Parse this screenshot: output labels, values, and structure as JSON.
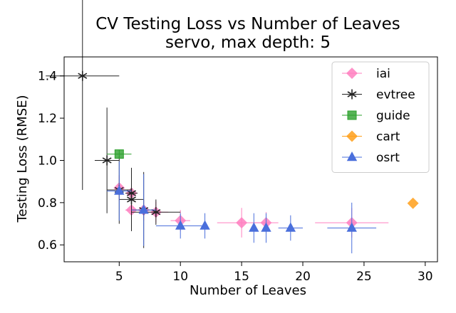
{
  "chart_data": {
    "type": "scatter",
    "title": "CV Testing Loss vs Number of Leaves",
    "subtitle": "servo, max depth: 5",
    "xlabel": "Number of Leaves",
    "ylabel": "Testing Loss (RMSE)",
    "xlim": [
      0.5,
      31
    ],
    "ylim": [
      0.52,
      1.49
    ],
    "xticks": [
      5,
      10,
      15,
      20,
      25,
      30
    ],
    "yticks": [
      0.6,
      0.8,
      1.0,
      1.2,
      1.4
    ],
    "xtick_labels": [
      "5",
      "10",
      "15",
      "20",
      "25",
      "30"
    ],
    "ytick_labels": [
      "0.6",
      "0.8",
      "1.0",
      "1.2",
      "1.4"
    ],
    "legend_position": "top-right",
    "grid": false,
    "series": [
      {
        "name": "iai",
        "marker": "diamond",
        "color": "#ff7fbf",
        "points": [
          {
            "x": 5,
            "y": 0.87,
            "xerr": 0.3,
            "yerr": 0.06
          },
          {
            "x": 6,
            "y": 0.845,
            "xerr": 0.5,
            "yerr": 0.06
          },
          {
            "x": 6,
            "y": 0.765,
            "xerr": 0.5,
            "yerr": 0.05
          },
          {
            "x": 7,
            "y": 0.765,
            "xerr": 0.5,
            "yerr": 0.05
          },
          {
            "x": 8,
            "y": 0.755,
            "xerr": 1.0,
            "yerr": 0.05
          },
          {
            "x": 10,
            "y": 0.715,
            "xerr": 0.8,
            "yerr": 0.05
          },
          {
            "x": 15,
            "y": 0.705,
            "xerr": 2.0,
            "yerr": 0.07
          },
          {
            "x": 17,
            "y": 0.705,
            "xerr": 1.0,
            "yerr": 0.05
          },
          {
            "x": 24,
            "y": 0.705,
            "xerr": 3.0,
            "yerr": 0.07
          }
        ]
      },
      {
        "name": "evtree",
        "marker": "star",
        "color": "#222222",
        "points": [
          {
            "x": 2,
            "y": 1.4,
            "xerr": 3.0,
            "yerr": 0.54
          },
          {
            "x": 4,
            "y": 1.0,
            "xerr": 1.0,
            "yerr": 0.25
          },
          {
            "x": 5,
            "y": 0.86,
            "xerr": 1.0,
            "yerr": 0.16
          },
          {
            "x": 6,
            "y": 0.815,
            "xerr": 1.0,
            "yerr": 0.15
          },
          {
            "x": 6,
            "y": 0.845,
            "xerr": 0.5,
            "yerr": 0.1
          },
          {
            "x": 7,
            "y": 0.765,
            "xerr": 1.0,
            "yerr": 0.18
          },
          {
            "x": 8,
            "y": 0.755,
            "xerr": 2.0,
            "yerr": 0.06
          }
        ]
      },
      {
        "name": "guide",
        "marker": "square",
        "color": "#2ca02c",
        "points": [
          {
            "x": 5,
            "y": 1.03,
            "xerr": 1.0,
            "yerr": 0.02
          }
        ]
      },
      {
        "name": "cart",
        "marker": "diamond",
        "color": "#ff9f1a",
        "points": [
          {
            "x": 29,
            "y": 0.797,
            "xerr": 0.0,
            "yerr": 0.0
          }
        ]
      },
      {
        "name": "osrt",
        "marker": "triangle",
        "color": "#4a6fdc",
        "points": [
          {
            "x": 5,
            "y": 0.855,
            "xerr": 1.0,
            "yerr": 0.14
          },
          {
            "x": 7,
            "y": 0.765,
            "xerr": 1.0,
            "yerr": 0.17
          },
          {
            "x": 10,
            "y": 0.69,
            "xerr": 2.0,
            "yerr": 0.06
          },
          {
            "x": 12,
            "y": 0.69,
            "xerr": 0.0,
            "yerr": 0.06
          },
          {
            "x": 16,
            "y": 0.68,
            "xerr": 0.0,
            "yerr": 0.07
          },
          {
            "x": 17,
            "y": 0.68,
            "xerr": 0.0,
            "yerr": 0.07
          },
          {
            "x": 19,
            "y": 0.68,
            "xerr": 1.0,
            "yerr": 0.06
          },
          {
            "x": 24,
            "y": 0.68,
            "xerr": 2.0,
            "yerr": 0.12
          }
        ]
      }
    ]
  }
}
